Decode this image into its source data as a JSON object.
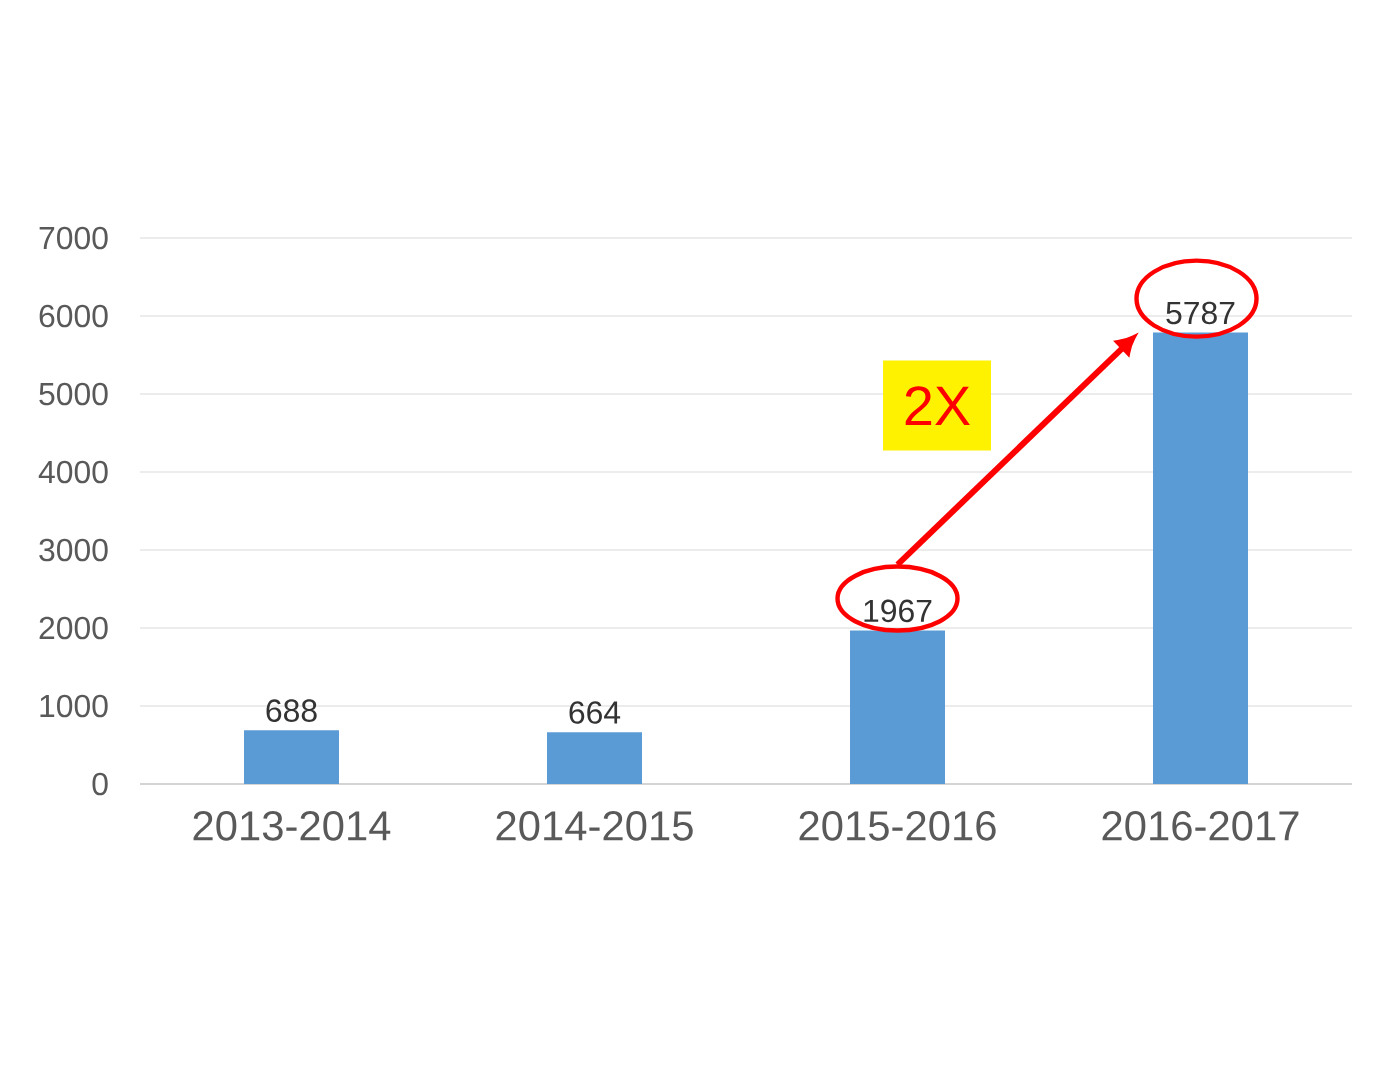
{
  "chart_data": {
    "type": "bar",
    "categories": [
      "2013-2014",
      "2014-2015",
      "2015-2016",
      "2016-2017"
    ],
    "values": [
      688,
      664,
      1967,
      5787
    ],
    "color": "#5b9bd5",
    "ylim": [
      0,
      7000
    ],
    "yticks": [
      0,
      1000,
      2000,
      3000,
      4000,
      5000,
      6000,
      7000
    ],
    "grid": "y",
    "data_labels": true,
    "annotations": [
      "2X"
    ]
  }
}
